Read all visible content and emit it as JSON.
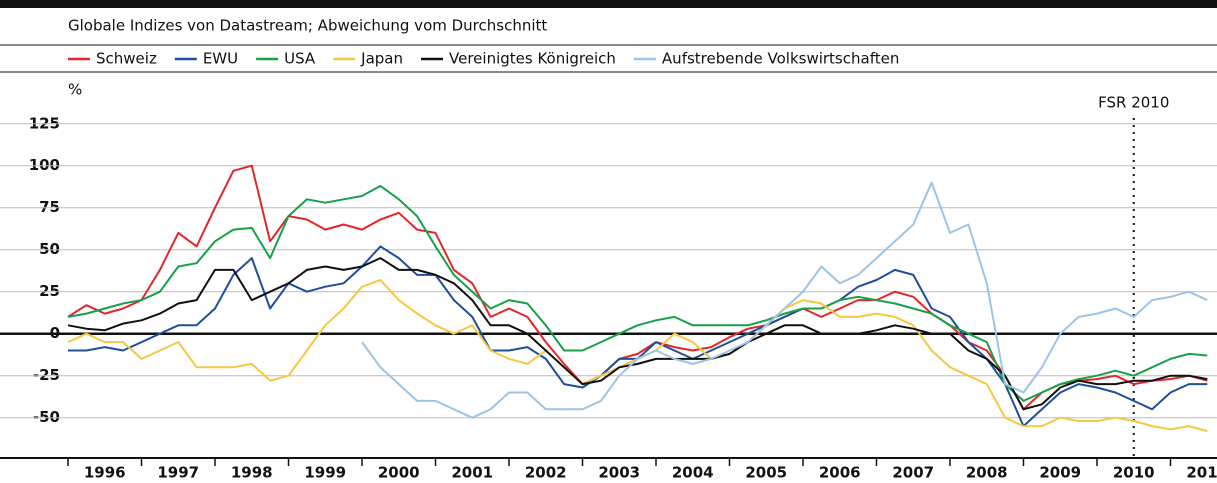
{
  "chart_data": {
    "type": "line",
    "subtitle": "Globale Indizes von Datastream; Abweichung vom Durchschnitt",
    "y_label": "%",
    "annotation": {
      "text": "FSR 2010",
      "x": 2010.5
    },
    "x": [
      1996,
      1996.25,
      1996.5,
      1996.75,
      1997,
      1997.25,
      1997.5,
      1997.75,
      1998,
      1998.25,
      1998.5,
      1998.75,
      1999,
      1999.25,
      1999.5,
      1999.75,
      2000,
      2000.25,
      2000.5,
      2000.75,
      2001,
      2001.25,
      2001.5,
      2001.75,
      2002,
      2002.25,
      2002.5,
      2002.75,
      2003,
      2003.25,
      2003.5,
      2003.75,
      2004,
      2004.25,
      2004.5,
      2004.75,
      2005,
      2005.25,
      2005.5,
      2005.75,
      2006,
      2006.25,
      2006.5,
      2006.75,
      2007,
      2007.25,
      2007.5,
      2007.75,
      2008,
      2008.25,
      2008.5,
      2008.75,
      2009,
      2009.25,
      2009.5,
      2009.75,
      2010,
      2010.25,
      2010.5,
      2010.75,
      2011,
      2011.25,
      2011.5
    ],
    "series": [
      {
        "name": "Schweiz",
        "color": "#e3262b",
        "values": [
          10,
          17,
          12,
          15,
          20,
          38,
          60,
          52,
          75,
          97,
          100,
          55,
          70,
          68,
          62,
          65,
          62,
          68,
          72,
          62,
          60,
          38,
          30,
          10,
          15,
          10,
          -5,
          -18,
          -30,
          -25,
          -15,
          -12,
          -5,
          -8,
          -10,
          -8,
          -2,
          3,
          5,
          10,
          15,
          10,
          15,
          20,
          20,
          25,
          22,
          12,
          5,
          -5,
          -10,
          -25,
          -45,
          -35,
          -30,
          -28,
          -27,
          -25,
          -30,
          -28,
          -27,
          -25,
          -28
        ]
      },
      {
        "name": "EWU",
        "color": "#1f4e9c",
        "values": [
          -10,
          -10,
          -8,
          -10,
          -5,
          0,
          5,
          5,
          15,
          35,
          45,
          15,
          30,
          25,
          28,
          30,
          40,
          52,
          45,
          35,
          35,
          20,
          10,
          -10,
          -10,
          -8,
          -15,
          -30,
          -32,
          -25,
          -15,
          -15,
          -5,
          -10,
          -15,
          -10,
          -5,
          0,
          5,
          10,
          15,
          15,
          20,
          28,
          32,
          38,
          35,
          15,
          10,
          -5,
          -15,
          -30,
          -55,
          -45,
          -35,
          -30,
          -32,
          -35,
          -40,
          -45,
          -35,
          -30,
          -30
        ]
      },
      {
        "name": "USA",
        "color": "#17a04a",
        "values": [
          10,
          12,
          15,
          18,
          20,
          25,
          40,
          42,
          55,
          62,
          63,
          45,
          70,
          80,
          78,
          80,
          82,
          88,
          80,
          70,
          52,
          35,
          25,
          15,
          20,
          18,
          5,
          -10,
          -10,
          -5,
          0,
          5,
          8,
          10,
          5,
          5,
          5,
          5,
          8,
          12,
          15,
          15,
          20,
          22,
          20,
          18,
          15,
          12,
          5,
          0,
          -5,
          -30,
          -40,
          -35,
          -30,
          -27,
          -25,
          -22,
          -25,
          -20,
          -15,
          -12,
          -13
        ]
      },
      {
        "name": "Japan",
        "color": "#f5c842",
        "values": [
          -5,
          0,
          -5,
          -5,
          -15,
          -10,
          -5,
          -20,
          -20,
          -20,
          -18,
          -28,
          -25,
          -10,
          5,
          15,
          28,
          32,
          20,
          12,
          5,
          0,
          5,
          -10,
          -15,
          -18,
          -10,
          -20,
          -30,
          -25,
          -20,
          -15,
          -10,
          0,
          -5,
          -15,
          -12,
          -5,
          5,
          15,
          20,
          18,
          10,
          10,
          12,
          10,
          5,
          -10,
          -20,
          -25,
          -30,
          -50,
          -55,
          -55,
          -50,
          -52,
          -52,
          -50,
          -52,
          -55,
          -57,
          -55,
          -58
        ]
      },
      {
        "name": "Vereinigtes Königreich",
        "color": "#111111",
        "values": [
          5,
          3,
          2,
          6,
          8,
          12,
          18,
          20,
          38,
          38,
          20,
          25,
          30,
          38,
          40,
          38,
          40,
          45,
          38,
          38,
          35,
          30,
          20,
          5,
          5,
          0,
          -10,
          -20,
          -30,
          -28,
          -20,
          -18,
          -15,
          -15,
          -15,
          -15,
          -12,
          -5,
          0,
          5,
          5,
          0,
          0,
          0,
          2,
          5,
          3,
          0,
          0,
          -10,
          -15,
          -25,
          -45,
          -42,
          -32,
          -28,
          -30,
          -30,
          -28,
          -28,
          -25,
          -25,
          -27
        ]
      },
      {
        "name": "Aufstrebende Volkswirtschaften",
        "color": "#9dc3e6",
        "values": [
          null,
          null,
          null,
          null,
          null,
          null,
          null,
          null,
          null,
          null,
          null,
          null,
          null,
          null,
          null,
          null,
          -5,
          -20,
          -30,
          -40,
          -40,
          -45,
          -50,
          -45,
          -35,
          -35,
          -45,
          -45,
          -45,
          -40,
          -25,
          -15,
          -10,
          -15,
          -18,
          -15,
          -10,
          -5,
          5,
          15,
          25,
          40,
          30,
          35,
          45,
          55,
          65,
          90,
          60,
          65,
          30,
          -30,
          -35,
          -20,
          0,
          10,
          12,
          15,
          10,
          20,
          22,
          25,
          20
        ]
      }
    ],
    "xlim": [
      1996,
      2011.75
    ],
    "xticks": [
      {
        "value": 1996.5,
        "label": "1996"
      },
      {
        "value": 1997.5,
        "label": "1997"
      },
      {
        "value": 1998.5,
        "label": "1998"
      },
      {
        "value": 1999.5,
        "label": "1999"
      },
      {
        "value": 2000.5,
        "label": "2000"
      },
      {
        "value": 2001.5,
        "label": "2001"
      },
      {
        "value": 2002.5,
        "label": "2002"
      },
      {
        "value": 2003.5,
        "label": "2003"
      },
      {
        "value": 2004.5,
        "label": "2004"
      },
      {
        "value": 2005.5,
        "label": "2005"
      },
      {
        "value": 2006.5,
        "label": "2006"
      },
      {
        "value": 2007.5,
        "label": "2007"
      },
      {
        "value": 2008.5,
        "label": "2008"
      },
      {
        "value": 2009.5,
        "label": "2009"
      },
      {
        "value": 2010.5,
        "label": "2010"
      },
      {
        "value": 2011.5,
        "label": "2011"
      }
    ],
    "ylim": [
      -74,
      132
    ],
    "yticks": [
      -50,
      -25,
      0,
      25,
      50,
      75,
      100,
      125
    ],
    "grid": true
  }
}
